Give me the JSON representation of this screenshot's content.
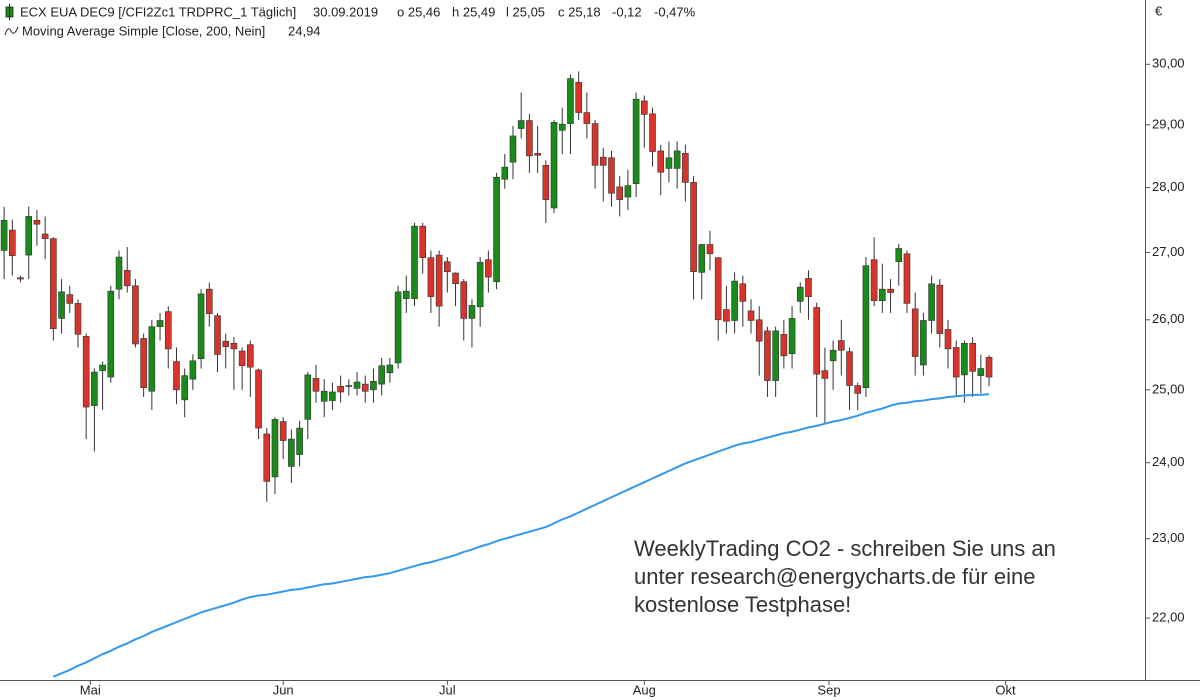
{
  "chart_data": {
    "type": "candlestick",
    "header": {
      "instrument": "ECX EUA DEC9 [/CFI2Zc1 TRDPRC_1 Täglich]",
      "date": "30.09.2019",
      "open": "o 25,46",
      "high": "h 25,49",
      "low": "l 25,05",
      "close": "c 25,18",
      "change": "-0,12",
      "change_pct": "-0,47%"
    },
    "annotation": [
      "WeeklyTrading CO2 - schreiben Sie uns an",
      "unter research@energycharts.de für eine",
      "kostenlose Testphase!"
    ],
    "y_unit": "€",
    "log_scale": true,
    "ylim": [
      21.25,
      31.1
    ],
    "yticks": [
      {
        "value": 22,
        "label": "22,00"
      },
      {
        "value": 23,
        "label": "23,00"
      },
      {
        "value": 24,
        "label": "24,00"
      },
      {
        "value": 25,
        "label": "25,00"
      },
      {
        "value": 26,
        "label": "26,00"
      },
      {
        "value": 27,
        "label": "27,00"
      },
      {
        "value": 28,
        "label": "28,00"
      },
      {
        "value": 29,
        "label": "29,00"
      },
      {
        "value": 30,
        "label": "30,00"
      }
    ],
    "xlim": [
      -0.5,
      139
    ],
    "xticks": [
      {
        "value": 10.5,
        "label": "Mai"
      },
      {
        "value": 34,
        "label": "Jun"
      },
      {
        "value": 54,
        "label": "Jul"
      },
      {
        "value": 78,
        "label": "Aug"
      },
      {
        "value": 100.5,
        "label": "Sep"
      },
      {
        "value": 122,
        "label": "Okt"
      }
    ],
    "up_color": "#1a8a1a",
    "down_color": "#d7342b",
    "candles": [
      [
        27.03,
        27.7,
        26.6,
        27.49
      ],
      [
        27.34,
        27.5,
        26.65,
        26.95
      ],
      [
        26.62,
        26.65,
        26.55,
        26.6
      ],
      [
        26.96,
        27.7,
        26.6,
        27.55
      ],
      [
        27.49,
        27.65,
        27.1,
        27.43
      ],
      [
        27.28,
        27.55,
        26.9,
        27.21
      ],
      [
        27.21,
        27.23,
        25.7,
        25.87
      ],
      [
        26.02,
        26.6,
        25.8,
        26.41
      ],
      [
        26.37,
        26.5,
        26.1,
        26.24
      ],
      [
        26.24,
        26.3,
        25.6,
        25.79
      ],
      [
        25.76,
        25.8,
        24.32,
        24.76
      ],
      [
        24.78,
        25.3,
        24.15,
        25.25
      ],
      [
        25.27,
        25.4,
        24.72,
        25.35
      ],
      [
        25.18,
        26.5,
        25.1,
        26.42
      ],
      [
        26.45,
        27.03,
        26.3,
        26.93
      ],
      [
        26.73,
        27.08,
        26.4,
        26.5
      ],
      [
        26.5,
        26.6,
        25.6,
        25.65
      ],
      [
        25.73,
        25.8,
        24.9,
        25.03
      ],
      [
        24.98,
        26.0,
        24.72,
        25.9
      ],
      [
        25.9,
        26.1,
        25.7,
        25.99
      ],
      [
        26.12,
        26.2,
        25.3,
        25.58
      ],
      [
        25.4,
        25.6,
        24.8,
        25.0
      ],
      [
        24.86,
        25.3,
        24.62,
        25.2
      ],
      [
        25.15,
        25.5,
        25.0,
        25.41
      ],
      [
        25.44,
        26.45,
        25.3,
        26.38
      ],
      [
        26.45,
        26.55,
        25.9,
        26.09
      ],
      [
        26.06,
        26.1,
        25.25,
        25.5
      ],
      [
        25.69,
        25.8,
        25.3,
        25.61
      ],
      [
        25.66,
        25.75,
        25.0,
        25.58
      ],
      [
        25.55,
        25.6,
        25.0,
        25.34
      ],
      [
        25.64,
        25.7,
        24.9,
        25.32
      ],
      [
        25.28,
        25.3,
        24.32,
        24.47
      ],
      [
        24.39,
        24.47,
        23.48,
        23.75
      ],
      [
        23.81,
        24.62,
        23.58,
        24.59
      ],
      [
        24.56,
        24.62,
        24.05,
        24.3
      ],
      [
        23.95,
        24.45,
        23.73,
        24.32
      ],
      [
        24.11,
        24.57,
        23.95,
        24.47
      ],
      [
        24.59,
        25.25,
        24.32,
        25.21
      ],
      [
        25.16,
        25.35,
        24.82,
        24.98
      ],
      [
        24.84,
        25.15,
        24.62,
        24.98
      ],
      [
        24.85,
        25.1,
        24.72,
        24.97
      ],
      [
        25.05,
        25.2,
        24.82,
        24.97
      ],
      [
        25.05,
        25.15,
        24.92,
        25.06
      ],
      [
        25.02,
        25.25,
        24.92,
        25.11
      ],
      [
        25.08,
        25.2,
        24.82,
        24.98
      ],
      [
        25.0,
        25.3,
        24.82,
        25.12
      ],
      [
        25.08,
        25.45,
        24.92,
        25.34
      ],
      [
        25.24,
        25.45,
        25.1,
        25.35
      ],
      [
        25.38,
        26.5,
        25.3,
        26.41
      ],
      [
        26.31,
        26.65,
        26.1,
        26.42
      ],
      [
        26.31,
        27.45,
        26.2,
        27.4
      ],
      [
        27.4,
        27.45,
        26.68,
        26.92
      ],
      [
        26.92,
        27.03,
        26.1,
        26.34
      ],
      [
        26.96,
        27.03,
        25.9,
        26.2
      ],
      [
        26.86,
        26.93,
        26.4,
        26.71
      ],
      [
        26.69,
        26.7,
        26.2,
        26.53
      ],
      [
        26.56,
        26.6,
        25.7,
        26.02
      ],
      [
        26.02,
        26.3,
        25.6,
        26.21
      ],
      [
        26.19,
        26.93,
        25.9,
        26.85
      ],
      [
        26.89,
        27.03,
        26.4,
        26.63
      ],
      [
        26.56,
        28.23,
        26.45,
        28.16
      ],
      [
        28.13,
        28.53,
        27.98,
        28.32
      ],
      [
        28.4,
        28.98,
        28.13,
        28.82
      ],
      [
        28.94,
        29.53,
        28.78,
        29.07
      ],
      [
        29.07,
        29.18,
        28.23,
        28.5
      ],
      [
        28.54,
        28.98,
        28.23,
        28.51
      ],
      [
        28.35,
        28.43,
        27.45,
        27.81
      ],
      [
        27.68,
        29.08,
        27.6,
        29.04
      ],
      [
        28.91,
        29.28,
        28.53,
        29.01
      ],
      [
        29.02,
        29.83,
        28.53,
        29.76
      ],
      [
        29.7,
        29.88,
        29.08,
        29.2
      ],
      [
        29.2,
        29.53,
        28.78,
        29.02
      ],
      [
        29.02,
        29.08,
        27.98,
        28.35
      ],
      [
        28.48,
        28.63,
        27.78,
        28.35
      ],
      [
        28.47,
        28.58,
        27.7,
        27.91
      ],
      [
        28.01,
        28.18,
        27.55,
        27.81
      ],
      [
        27.85,
        28.28,
        27.65,
        28.03
      ],
      [
        28.06,
        29.53,
        27.85,
        29.42
      ],
      [
        29.39,
        29.48,
        28.63,
        29.17
      ],
      [
        29.18,
        29.28,
        28.33,
        28.57
      ],
      [
        28.58,
        28.68,
        27.88,
        28.24
      ],
      [
        28.3,
        28.73,
        28.08,
        28.47
      ],
      [
        28.3,
        28.73,
        27.98,
        28.58
      ],
      [
        28.54,
        28.68,
        27.78,
        28.08
      ],
      [
        28.08,
        28.18,
        26.3,
        26.71
      ],
      [
        26.7,
        27.13,
        26.3,
        27.12
      ],
      [
        27.12,
        27.33,
        26.73,
        26.98
      ],
      [
        26.92,
        26.93,
        25.7,
        26.0
      ],
      [
        26.15,
        26.5,
        25.8,
        25.98
      ],
      [
        25.99,
        26.7,
        25.8,
        26.57
      ],
      [
        26.53,
        26.65,
        25.9,
        26.27
      ],
      [
        26.13,
        26.3,
        25.8,
        25.99
      ],
      [
        26.0,
        26.2,
        25.2,
        25.69
      ],
      [
        25.84,
        25.9,
        24.9,
        25.13
      ],
      [
        25.13,
        25.9,
        24.9,
        25.84
      ],
      [
        25.79,
        26.0,
        25.3,
        25.48
      ],
      [
        25.51,
        26.2,
        25.3,
        26.02
      ],
      [
        26.27,
        26.55,
        26.1,
        26.48
      ],
      [
        26.61,
        26.73,
        26.0,
        26.34
      ],
      [
        26.18,
        26.25,
        24.62,
        25.22
      ],
      [
        25.27,
        25.6,
        24.52,
        25.16
      ],
      [
        25.41,
        25.7,
        25.0,
        25.56
      ],
      [
        25.7,
        26.0,
        25.2,
        25.56
      ],
      [
        25.54,
        25.6,
        24.72,
        25.06
      ],
      [
        25.06,
        25.1,
        24.72,
        24.95
      ],
      [
        25.03,
        26.93,
        24.9,
        26.8
      ],
      [
        26.89,
        27.23,
        26.2,
        26.28
      ],
      [
        26.28,
        26.83,
        26.1,
        26.45
      ],
      [
        26.45,
        26.6,
        26.1,
        26.4
      ],
      [
        26.86,
        27.13,
        26.5,
        27.06
      ],
      [
        26.98,
        27.03,
        26.1,
        26.24
      ],
      [
        26.16,
        26.4,
        25.2,
        25.47
      ],
      [
        25.35,
        26.1,
        25.2,
        25.99
      ],
      [
        25.99,
        26.65,
        25.8,
        26.53
      ],
      [
        26.51,
        26.6,
        25.6,
        25.8
      ],
      [
        25.86,
        26.0,
        25.3,
        25.58
      ],
      [
        25.6,
        25.7,
        24.9,
        25.18
      ],
      [
        25.21,
        25.7,
        24.82,
        25.66
      ],
      [
        25.66,
        25.75,
        24.9,
        25.26
      ],
      [
        25.2,
        25.5,
        24.95,
        25.3
      ],
      [
        25.46,
        25.49,
        25.05,
        25.18
      ]
    ],
    "series": [
      {
        "name": "Moving Average Simple  [Close, 200, Nein]",
        "color": "#3399ee",
        "last_label": "24,94",
        "values": [
          null,
          null,
          null,
          null,
          null,
          null,
          21.29,
          21.33,
          21.37,
          21.42,
          21.46,
          21.51,
          21.56,
          21.6,
          21.65,
          21.69,
          21.74,
          21.78,
          21.83,
          21.87,
          21.91,
          21.95,
          21.99,
          22.03,
          22.07,
          22.1,
          22.13,
          22.16,
          22.19,
          22.23,
          22.26,
          22.28,
          22.29,
          22.31,
          22.33,
          22.35,
          22.36,
          22.38,
          22.4,
          22.42,
          22.43,
          22.45,
          22.47,
          22.49,
          22.51,
          22.52,
          22.54,
          22.56,
          22.59,
          22.62,
          22.65,
          22.68,
          22.7,
          22.73,
          22.76,
          22.79,
          22.83,
          22.86,
          22.9,
          22.93,
          22.97,
          23.0,
          23.03,
          23.06,
          23.09,
          23.12,
          23.15,
          23.2,
          23.25,
          23.29,
          23.34,
          23.39,
          23.44,
          23.49,
          23.54,
          23.59,
          23.64,
          23.69,
          23.74,
          23.79,
          23.84,
          23.89,
          23.94,
          23.99,
          24.03,
          24.07,
          24.11,
          24.15,
          24.19,
          24.23,
          24.26,
          24.28,
          24.31,
          24.34,
          24.37,
          24.4,
          24.42,
          24.45,
          24.48,
          24.5,
          24.53,
          24.56,
          24.58,
          24.61,
          24.64,
          24.68,
          24.71,
          24.74,
          24.78,
          24.81,
          24.82,
          24.84,
          24.85,
          24.87,
          24.88,
          24.9,
          24.91,
          24.92,
          24.93,
          24.93,
          24.94
        ]
      }
    ]
  }
}
